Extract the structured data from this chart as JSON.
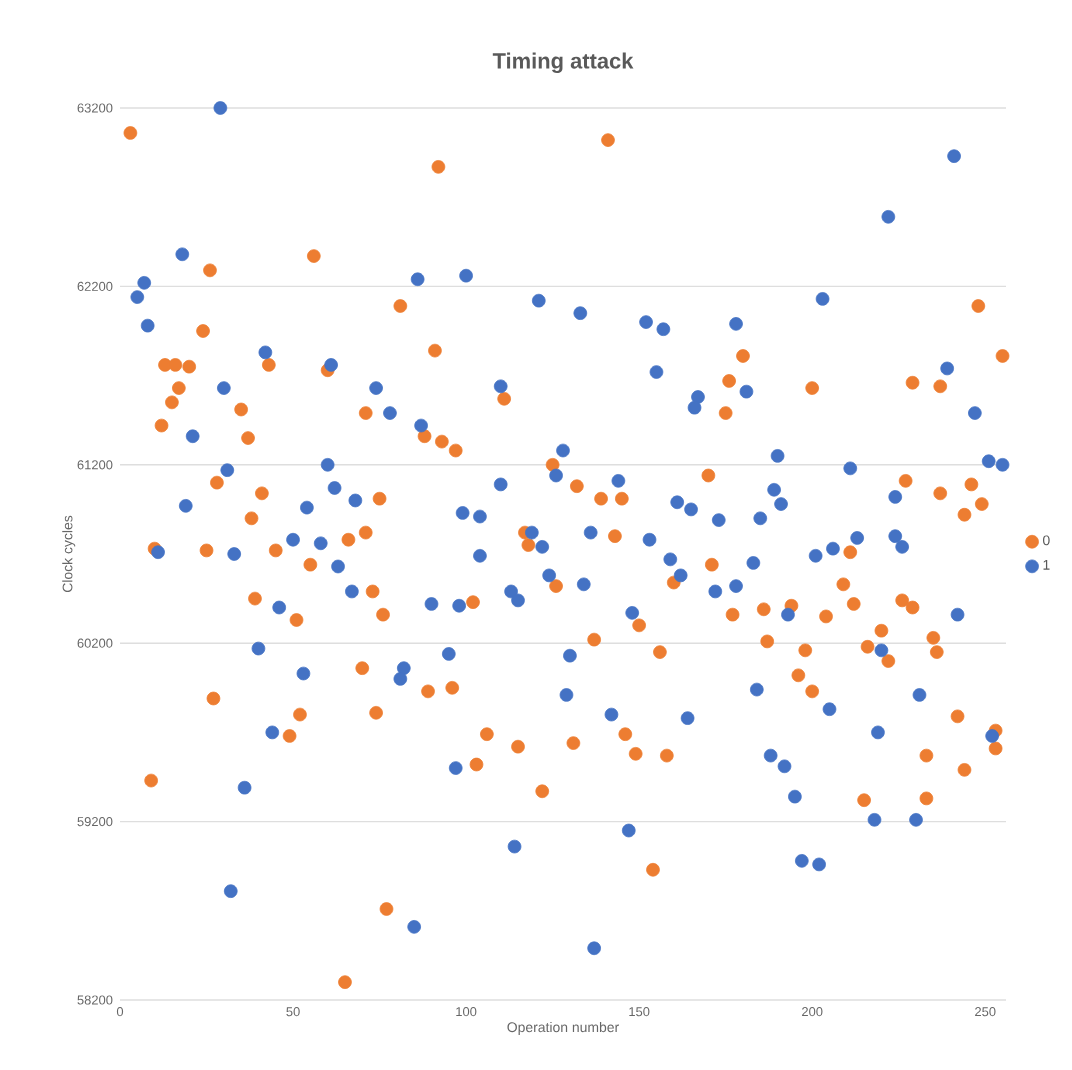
{
  "chart_data": {
    "type": "scatter",
    "title": "Timing attack",
    "xlabel": "Operation number",
    "ylabel": "Clock cycles",
    "xlim": [
      0,
      256
    ],
    "xticks": [
      0,
      50,
      100,
      150,
      200,
      250
    ],
    "ylim": [
      58200,
      63200
    ],
    "yticks": [
      58200,
      59200,
      60200,
      61200,
      62200,
      63200
    ],
    "grid": "y",
    "legend": "right",
    "marker": "circle",
    "series": [
      {
        "name": "0",
        "color": "#ed7d31",
        "x": [
          3,
          56,
          26,
          24,
          81,
          92,
          91,
          13,
          16,
          20,
          17,
          15,
          12,
          35,
          37,
          43,
          60,
          71,
          88,
          93,
          97,
          111,
          28,
          41,
          38,
          75,
          71,
          66,
          117,
          118,
          10,
          25,
          45,
          55,
          39,
          73,
          51,
          76,
          102,
          70,
          27,
          89,
          96,
          52,
          74,
          49,
          106,
          115,
          9,
          103,
          122,
          77,
          65,
          141,
          248,
          180,
          176,
          175,
          200,
          229,
          237,
          255,
          125,
          132,
          139,
          145,
          170,
          227,
          246,
          237,
          249,
          244,
          143,
          211,
          126,
          171,
          160,
          209,
          212,
          226,
          229,
          177,
          186,
          194,
          204,
          150,
          137,
          156,
          187,
          198,
          220,
          216,
          222,
          235,
          236,
          196,
          200,
          242,
          253,
          253,
          146,
          149,
          158,
          131,
          233,
          244,
          215,
          233,
          154
        ],
        "values": [
          63060,
          62370,
          62290,
          61950,
          62090,
          62870,
          61840,
          61760,
          61760,
          61750,
          61630,
          61550,
          61420,
          61510,
          61350,
          61760,
          61730,
          61490,
          61360,
          61330,
          61280,
          61570,
          61100,
          61040,
          60900,
          61010,
          60820,
          60780,
          60820,
          60750,
          60730,
          60720,
          60720,
          60640,
          60450,
          60490,
          60330,
          60360,
          60430,
          60060,
          59890,
          59930,
          59950,
          59800,
          59810,
          59680,
          59690,
          59620,
          59430,
          59520,
          59370,
          58710,
          58300,
          63020,
          62090,
          61810,
          61670,
          61490,
          61630,
          61660,
          61640,
          61810,
          61200,
          61080,
          61010,
          61010,
          61140,
          61110,
          61090,
          61040,
          60980,
          60920,
          60800,
          60710,
          60520,
          60640,
          60540,
          60530,
          60420,
          60440,
          60400,
          60360,
          60390,
          60410,
          60350,
          60300,
          60220,
          60150,
          60210,
          60160,
          60270,
          60180,
          60100,
          60230,
          60150,
          60020,
          59930,
          59790,
          59710,
          59610,
          59690,
          59580,
          59570,
          59640,
          59570,
          59490,
          59320,
          59330,
          58930
        ]
      },
      {
        "name": "1",
        "color": "#4472c4",
        "x": [
          29,
          18,
          7,
          5,
          8,
          86,
          100,
          121,
          42,
          61,
          30,
          74,
          78,
          87,
          110,
          21,
          60,
          31,
          62,
          68,
          110,
          19,
          54,
          99,
          104,
          50,
          58,
          119,
          11,
          33,
          104,
          63,
          67,
          90,
          98,
          113,
          115,
          46,
          40,
          53,
          82,
          81,
          95,
          44,
          97,
          36,
          114,
          32,
          85,
          241,
          222,
          203,
          133,
          152,
          157,
          178,
          155,
          167,
          166,
          181,
          239,
          247,
          128,
          126,
          190,
          211,
          251,
          255,
          144,
          189,
          191,
          161,
          165,
          224,
          173,
          185,
          122,
          136,
          153,
          213,
          206,
          224,
          226,
          201,
          159,
          183,
          124,
          134,
          162,
          172,
          178,
          148,
          193,
          242,
          130,
          220,
          184,
          205,
          231,
          129,
          142,
          164,
          219,
          252,
          188,
          192,
          195,
          218,
          230,
          147,
          197,
          202,
          137
        ],
        "values": [
          63200,
          62380,
          62220,
          62140,
          61980,
          62240,
          62260,
          62120,
          61830,
          61760,
          61630,
          61630,
          61490,
          61420,
          61640,
          61360,
          61200,
          61170,
          61070,
          61000,
          61090,
          60970,
          60960,
          60930,
          60910,
          60780,
          60760,
          60820,
          60710,
          60700,
          60690,
          60630,
          60490,
          60420,
          60410,
          60490,
          60440,
          60400,
          60170,
          60030,
          60060,
          60000,
          60140,
          59700,
          59500,
          59390,
          59060,
          58810,
          58610,
          62930,
          62590,
          62130,
          62050,
          62000,
          61960,
          61990,
          61720,
          61580,
          61520,
          61610,
          61740,
          61490,
          61280,
          61140,
          61250,
          61180,
          61220,
          61200,
          61110,
          61060,
          60980,
          60990,
          60950,
          61020,
          60890,
          60900,
          60740,
          60820,
          60780,
          60790,
          60730,
          60800,
          60740,
          60690,
          60670,
          60650,
          60580,
          60530,
          60580,
          60490,
          60520,
          60370,
          60360,
          60360,
          60130,
          60160,
          59940,
          59830,
          59910,
          59910,
          59800,
          59780,
          59700,
          59680,
          59570,
          59510,
          59340,
          59210,
          59210,
          59150,
          58980,
          58960,
          58490
        ]
      }
    ]
  }
}
